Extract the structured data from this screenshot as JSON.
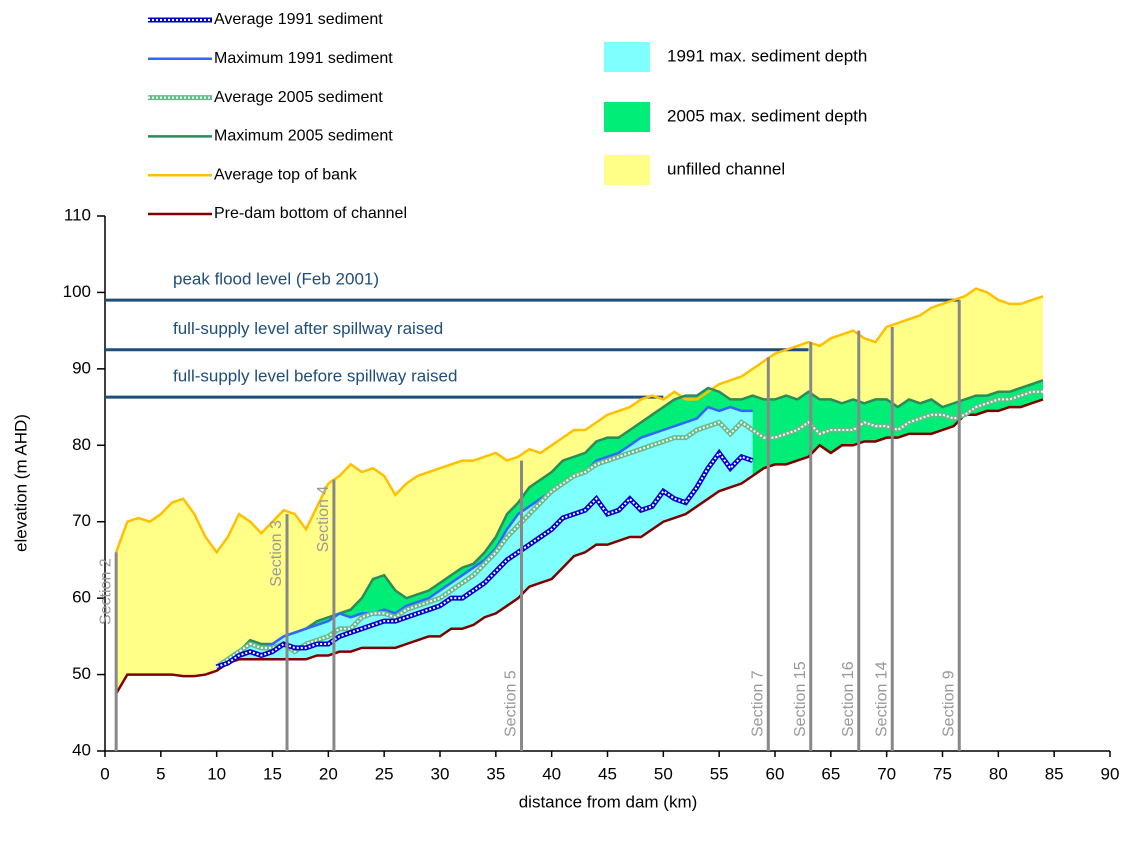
{
  "chart_data": {
    "type": "line",
    "x_label": "distance from dam (km)",
    "y_label": "elevation (m AHD)",
    "xlim": [
      0,
      90
    ],
    "xticks": [
      0,
      5,
      10,
      15,
      20,
      25,
      30,
      35,
      40,
      45,
      50,
      55,
      60,
      65,
      70,
      75,
      80,
      85,
      90
    ],
    "ylim": [
      40,
      110
    ],
    "yticks": [
      40,
      50,
      60,
      70,
      80,
      90,
      100,
      110
    ],
    "x": [
      1,
      2,
      3,
      4,
      5,
      6,
      7,
      8,
      9,
      10,
      11,
      12,
      13,
      14,
      15,
      16,
      17,
      18,
      19,
      20,
      21,
      22,
      23,
      24,
      25,
      26,
      27,
      28,
      29,
      30,
      31,
      32,
      33,
      34,
      35,
      36,
      37,
      38,
      39,
      40,
      41,
      42,
      43,
      44,
      45,
      46,
      47,
      48,
      49,
      50,
      51,
      52,
      53,
      54,
      55,
      56,
      57,
      58,
      59,
      60,
      61,
      62,
      63,
      64,
      65,
      66,
      67,
      68,
      69,
      70,
      71,
      72,
      73,
      74,
      75,
      76,
      77,
      78,
      79,
      80,
      81,
      82,
      83,
      84
    ],
    "series": [
      {
        "name": "Average 1991 sediment",
        "color": "#0000cc",
        "style": "dotted",
        "values": [
          null,
          null,
          null,
          null,
          null,
          null,
          null,
          null,
          null,
          51,
          51.5,
          52.5,
          53,
          52.5,
          53,
          54,
          53.5,
          53.5,
          54,
          54,
          55,
          55.5,
          56,
          56.5,
          57,
          57,
          57.5,
          58,
          58.5,
          59,
          60,
          60,
          61,
          62,
          63.5,
          65,
          66,
          67,
          68,
          69,
          70.5,
          71,
          71.5,
          73,
          71,
          71.5,
          73,
          71.5,
          72,
          74,
          73,
          72.5,
          74.5,
          77,
          79,
          77,
          78.5,
          78,
          null,
          null,
          null,
          null,
          null,
          null,
          null,
          null,
          null,
          null,
          null,
          null,
          null,
          null,
          null,
          null,
          null,
          null,
          null,
          null,
          null,
          null,
          null,
          null,
          null,
          null
        ]
      },
      {
        "name": "Maximum 1991 sediment",
        "color": "#3366ff",
        "style": "solid",
        "values": [
          null,
          null,
          null,
          null,
          null,
          null,
          null,
          null,
          null,
          51,
          52,
          53,
          54,
          53.5,
          54,
          55,
          55.5,
          56,
          56.5,
          57,
          58,
          57.5,
          58,
          58,
          58.5,
          58,
          59,
          59.5,
          60,
          61,
          62,
          63,
          64,
          65,
          66.5,
          69,
          71,
          72,
          73,
          74,
          75,
          76,
          76.5,
          78,
          78.5,
          79,
          80,
          81,
          81.5,
          82,
          82.5,
          83,
          83.5,
          85,
          84.5,
          85,
          84.5,
          84.5,
          null,
          null,
          null,
          null,
          null,
          null,
          null,
          null,
          null,
          null,
          null,
          null,
          null,
          null,
          null,
          null,
          null,
          null,
          null,
          null,
          null,
          null,
          null,
          null,
          null,
          null
        ]
      },
      {
        "name": "Average 2005 sediment",
        "color": "#66bb88",
        "style": "dotted",
        "values": [
          null,
          null,
          null,
          null,
          null,
          null,
          null,
          null,
          null,
          51,
          52,
          53,
          54,
          53.5,
          53.5,
          54,
          53,
          54,
          54.5,
          55,
          56,
          56,
          57.5,
          58,
          58,
          57.5,
          58.5,
          59,
          59.5,
          60,
          61,
          62,
          63,
          64.5,
          66,
          68,
          69.5,
          71,
          72.5,
          74,
          75,
          76,
          76.5,
          77.5,
          78,
          78.5,
          79,
          79.5,
          80,
          80.5,
          81,
          81,
          82,
          82.5,
          83,
          81.5,
          83,
          82,
          81,
          81,
          81.5,
          82,
          83,
          81.5,
          82,
          82,
          82,
          83,
          82.5,
          82.5,
          82,
          83,
          83.5,
          84,
          84,
          83.5,
          84,
          85,
          85.5,
          86,
          86,
          86.5,
          87,
          87
        ]
      },
      {
        "name": "Maximum 2005 sediment",
        "color": "#2e8b57",
        "style": "solid",
        "values": [
          null,
          null,
          null,
          null,
          null,
          null,
          null,
          null,
          null,
          51,
          52,
          53,
          54.5,
          54,
          54,
          55,
          55.5,
          56,
          57,
          57.5,
          58,
          58.5,
          60,
          62.5,
          63,
          61,
          60,
          60.5,
          61,
          62,
          63,
          64,
          64.5,
          66,
          68,
          71,
          72.5,
          74.5,
          75.5,
          76.5,
          78,
          78.5,
          79,
          80.5,
          81,
          81,
          82,
          83,
          84,
          85,
          86,
          86.5,
          86.5,
          87.5,
          87,
          86,
          86,
          86.5,
          86,
          86,
          86.5,
          86,
          87,
          86,
          86,
          85.5,
          86,
          85.5,
          86,
          86,
          85,
          86,
          85.5,
          86,
          85,
          85.5,
          86,
          86.5,
          86.5,
          87,
          87,
          87.5,
          88,
          88.5
        ]
      },
      {
        "name": "Average top of bank",
        "color": "#ffc000",
        "style": "solid",
        "values": [
          66,
          70,
          70.5,
          70,
          71,
          72.5,
          73,
          71,
          68,
          66,
          68,
          71,
          70,
          68.5,
          70,
          71.5,
          71,
          69,
          72,
          75,
          76,
          77.5,
          76.5,
          77,
          76,
          73.5,
          75,
          76,
          76.5,
          77,
          77.5,
          78,
          78,
          78.5,
          79,
          78,
          78.5,
          79.5,
          79,
          80,
          81,
          82,
          82,
          83,
          84,
          84.5,
          85,
          86,
          86.5,
          86,
          87,
          86,
          86,
          87,
          88,
          88.5,
          89,
          90,
          91,
          92,
          92.5,
          93,
          93.5,
          93,
          94,
          94.5,
          95,
          94,
          93.5,
          95.5,
          96,
          96.5,
          97,
          98,
          98.5,
          99,
          99.5,
          100.5,
          100,
          99,
          98.5,
          98.5,
          99,
          99.5
        ]
      },
      {
        "name": "Pre-dam bottom of channel",
        "color": "#800000",
        "style": "solid",
        "values": [
          47.5,
          50,
          50,
          50,
          50,
          50,
          49.8,
          49.8,
          50,
          50.5,
          51.5,
          52,
          52,
          52,
          52,
          52,
          52,
          52,
          52.5,
          52.5,
          53,
          53,
          53.5,
          53.5,
          53.5,
          53.5,
          54,
          54.5,
          55,
          55,
          56,
          56,
          56.5,
          57.5,
          58,
          59,
          60,
          61.5,
          62,
          62.5,
          64,
          65.5,
          66,
          67,
          67,
          67.5,
          68,
          68,
          69,
          70,
          70.5,
          71,
          72,
          73,
          74,
          74.5,
          75,
          76,
          77,
          77.5,
          77.5,
          78,
          78.5,
          80,
          79,
          80,
          80,
          80.5,
          80.5,
          81,
          81,
          81.5,
          81.5,
          81.5,
          82,
          82.5,
          84,
          84,
          84.5,
          84.5,
          85,
          85,
          85.5,
          86
        ]
      }
    ],
    "areas": [
      {
        "name": "1991 max. sediment depth",
        "color": "#80ffff"
      },
      {
        "name": "2005 max. sediment depth",
        "color": "#00ee77"
      },
      {
        "name": "unfilled channel",
        "color": "#ffff88"
      }
    ],
    "reference_lines": [
      {
        "label": "peak flood level (Feb 2001)",
        "y": 99,
        "x_end": 76.5,
        "color": "#1f4e79"
      },
      {
        "label": "full-supply level after spillway raised",
        "y": 92.5,
        "x_end": 63,
        "color": "#1f4e79"
      },
      {
        "label": "full-supply level before spillway raised",
        "y": 86.3,
        "x_end": 50,
        "color": "#1f4e79"
      }
    ],
    "sections": [
      {
        "label": "Section 2",
        "x": 1,
        "top": 66
      },
      {
        "label": "Section 3",
        "x": 16.3,
        "top": 71
      },
      {
        "label": "Section 4",
        "x": 20.5,
        "top": 75.5
      },
      {
        "label": "Section 5",
        "x": 37.3,
        "top": 78
      },
      {
        "label": "Section 7",
        "x": 59.4,
        "top": 91.5
      },
      {
        "label": "Section 15",
        "x": 63.2,
        "top": 93.5
      },
      {
        "label": "Section 16",
        "x": 67.5,
        "top": 95
      },
      {
        "label": "Section 14",
        "x": 70.5,
        "top": 95.5
      },
      {
        "label": "Section 9",
        "x": 76.5,
        "top": 99
      }
    ]
  }
}
